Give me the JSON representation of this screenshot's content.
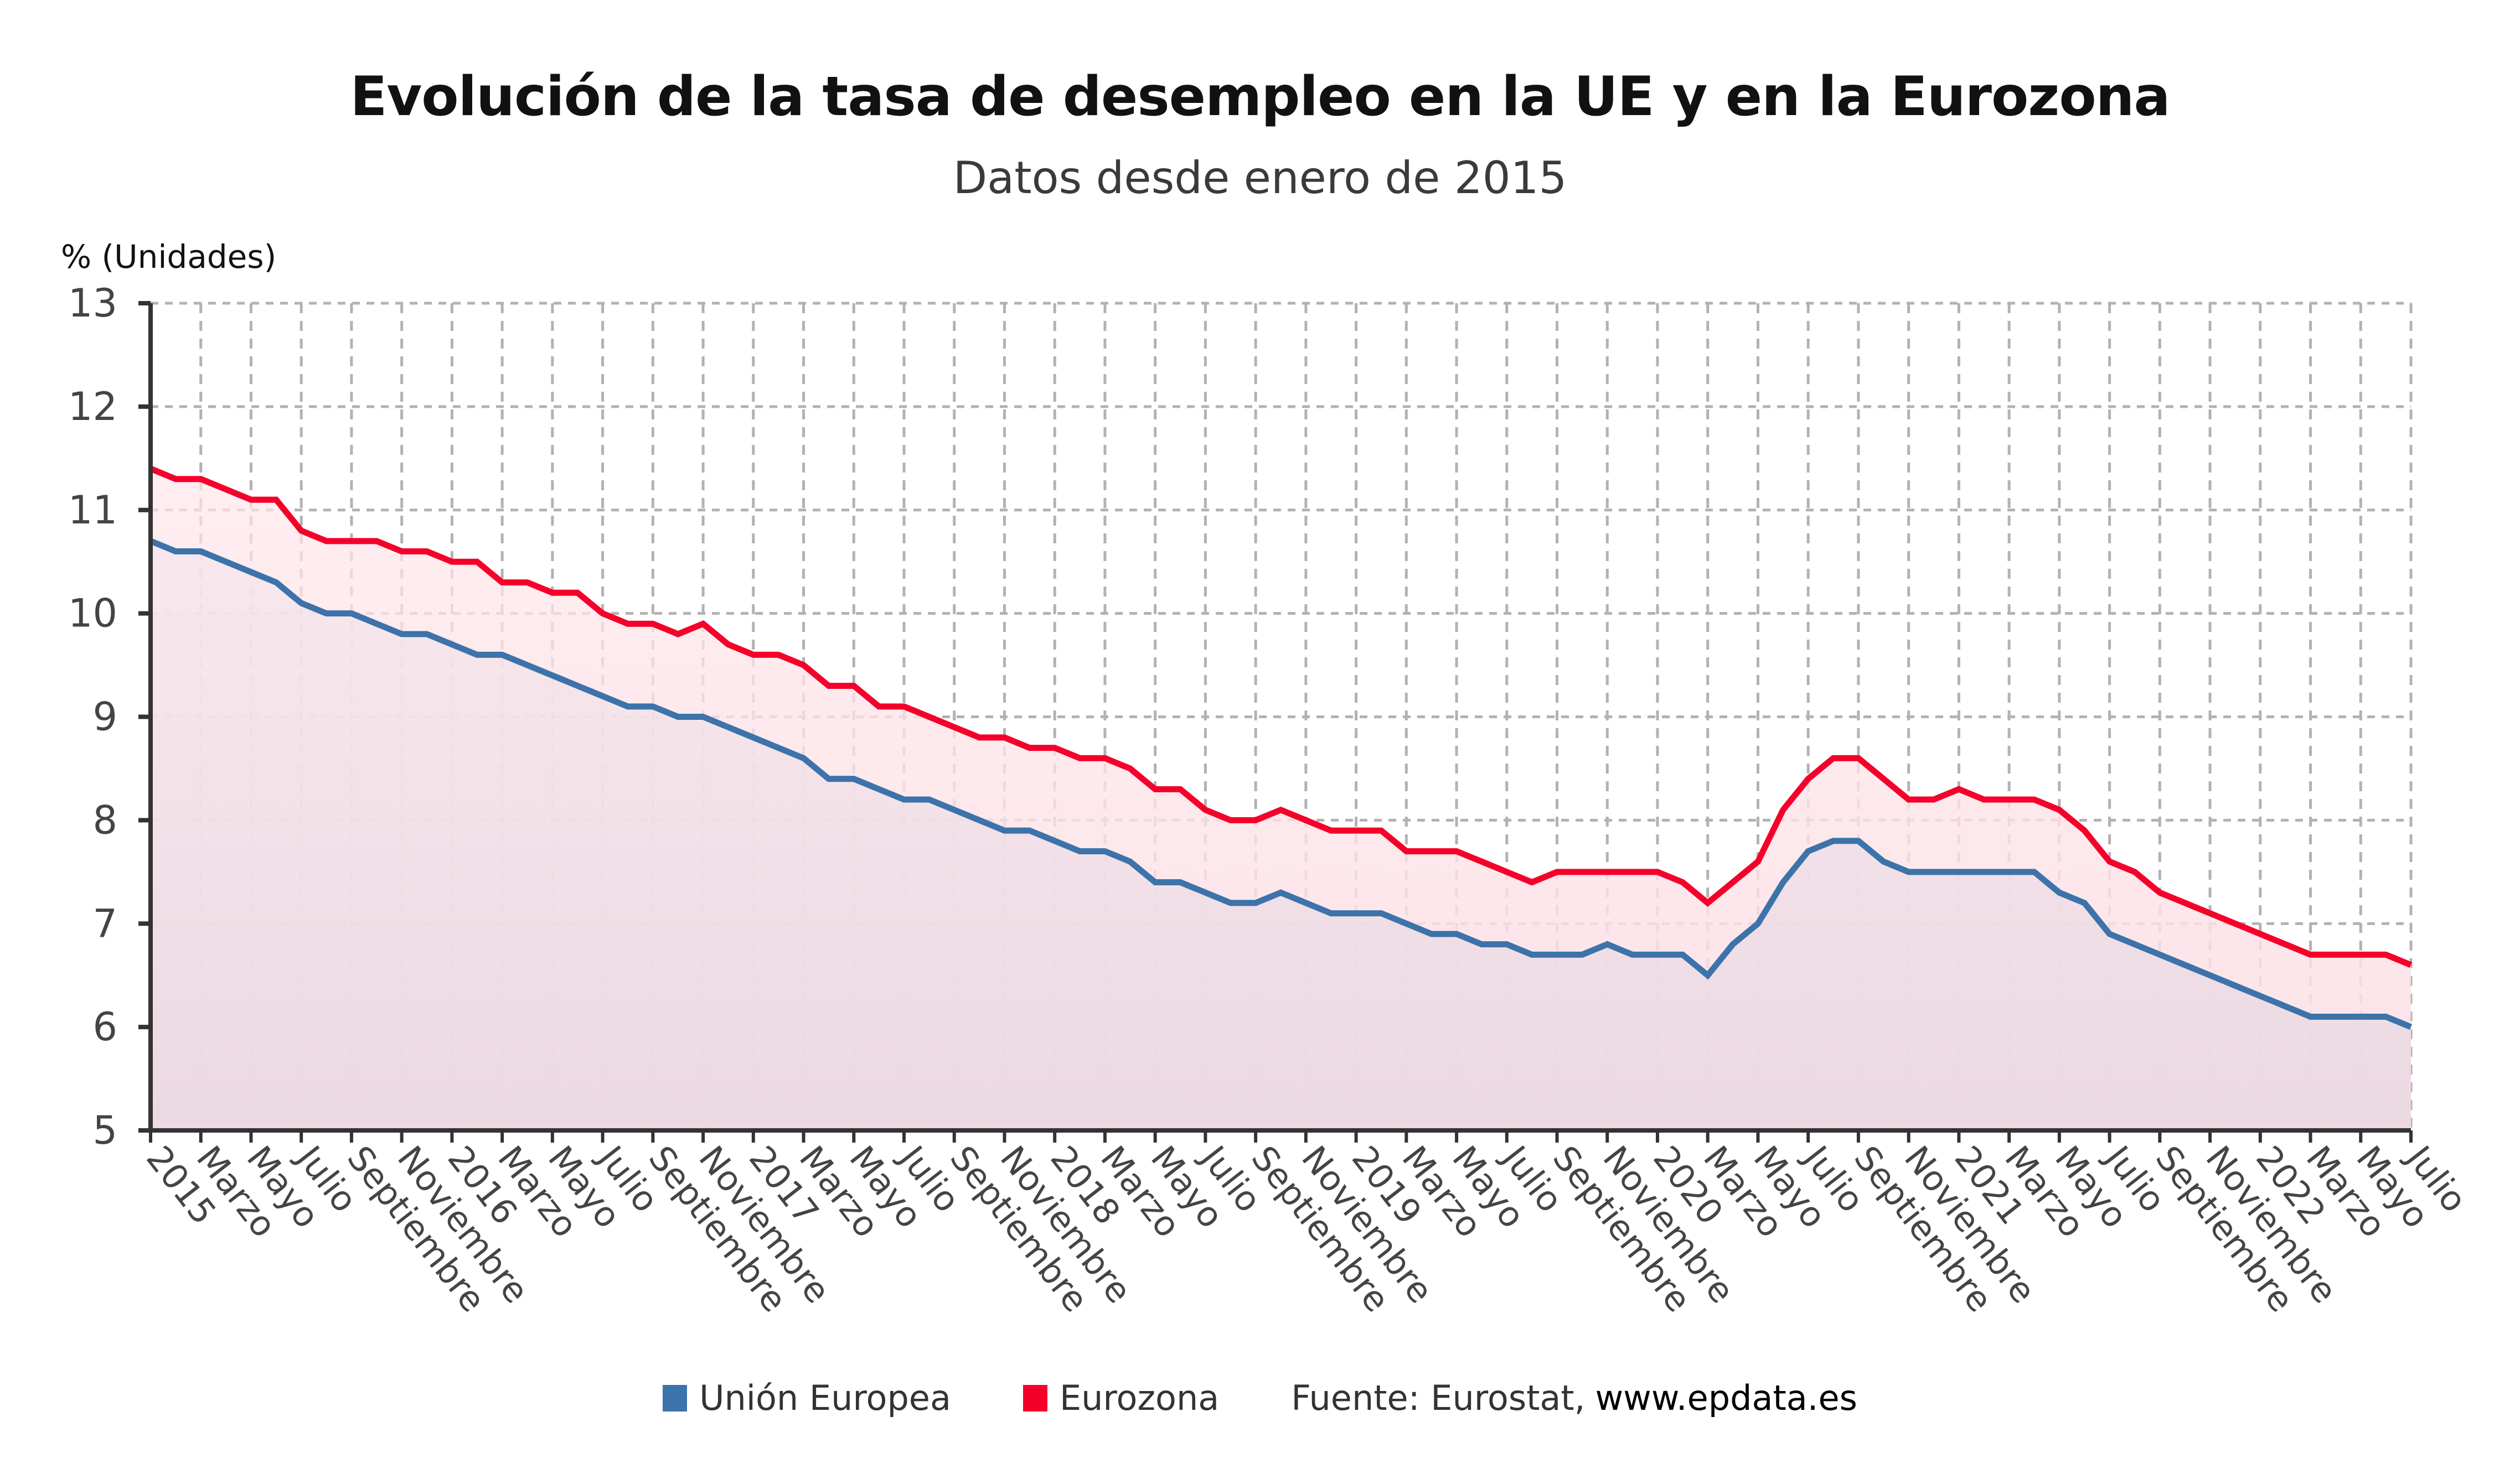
{
  "title": "Evolución de la tasa de desempleo en la UE y en la Eurozona",
  "subtitle": "Datos desde enero de 2015",
  "legend": [
    {
      "label": "Unión Europea",
      "color": "#3c73aa"
    },
    {
      "label": "Eurozona",
      "color": "#f5002a"
    }
  ],
  "source": {
    "label": "Fuente: Eurostat,",
    "site": "www.epdata.es"
  },
  "chart_data": {
    "type": "line",
    "title": "Evolución de la tasa de desempleo en la UE y en la Eurozona",
    "subtitle": "Datos desde enero de 2015",
    "xlabel": "",
    "ylabel": "% (Unidades)",
    "ylim": [
      5,
      13
    ],
    "yticks": [
      5,
      6,
      7,
      8,
      9,
      10,
      11,
      12,
      13
    ],
    "grid": true,
    "legend_position": "bottom",
    "x_start": "2015-01",
    "x_frequency": "monthly",
    "x_tick_labels": [
      "2015",
      "Marzo",
      "Mayo",
      "Julio",
      "Septiembre",
      "Noviembre",
      "2016",
      "Marzo",
      "Mayo",
      "Julio",
      "Septiembre",
      "Noviembre",
      "2017",
      "Marzo",
      "Mayo",
      "Julio",
      "Septiembre",
      "Noviembre",
      "2018",
      "Marzo",
      "Mayo",
      "Julio",
      "Septiembre",
      "Noviembre",
      "2019",
      "Marzo",
      "Mayo",
      "Julio",
      "Septiembre",
      "Noviembre",
      "2020",
      "Marzo",
      "Mayo",
      "Julio",
      "Septiembre",
      "Noviembre",
      "2021",
      "Marzo",
      "Mayo",
      "Julio",
      "Septiembre",
      "Noviembre",
      "2022",
      "Marzo",
      "Mayo",
      "Julio"
    ],
    "series": [
      {
        "name": "Unión Europea",
        "color": "#3c73aa",
        "values": [
          10.7,
          10.6,
          10.6,
          10.5,
          10.4,
          10.3,
          10.1,
          10.0,
          10.0,
          9.9,
          9.8,
          9.8,
          9.7,
          9.6,
          9.6,
          9.5,
          9.4,
          9.3,
          9.2,
          9.1,
          9.1,
          9.0,
          9.0,
          8.9,
          8.8,
          8.7,
          8.6,
          8.4,
          8.4,
          8.3,
          8.2,
          8.2,
          8.1,
          8.0,
          7.9,
          7.9,
          7.8,
          7.7,
          7.7,
          7.6,
          7.4,
          7.4,
          7.3,
          7.2,
          7.2,
          7.3,
          7.2,
          7.1,
          7.1,
          7.1,
          7.0,
          6.9,
          6.9,
          6.8,
          6.8,
          6.7,
          6.7,
          6.7,
          6.8,
          6.7,
          6.7,
          6.7,
          6.5,
          6.8,
          7.0,
          7.4,
          7.7,
          7.8,
          7.8,
          7.6,
          7.5,
          7.5,
          7.5,
          7.5,
          7.5,
          7.5,
          7.3,
          7.2,
          6.9,
          6.8,
          6.7,
          6.6,
          6.5,
          6.4,
          6.3,
          6.2,
          6.1,
          6.1,
          6.1,
          6.1,
          6.0
        ]
      },
      {
        "name": "Eurozona",
        "color": "#f5002a",
        "values": [
          11.4,
          11.3,
          11.3,
          11.2,
          11.1,
          11.1,
          10.8,
          10.7,
          10.7,
          10.7,
          10.6,
          10.6,
          10.5,
          10.5,
          10.3,
          10.3,
          10.2,
          10.2,
          10.0,
          9.9,
          9.9,
          9.8,
          9.9,
          9.7,
          9.6,
          9.6,
          9.5,
          9.3,
          9.3,
          9.1,
          9.1,
          9.0,
          8.9,
          8.8,
          8.8,
          8.7,
          8.7,
          8.6,
          8.6,
          8.5,
          8.3,
          8.3,
          8.1,
          8.0,
          8.0,
          8.1,
          8.0,
          7.9,
          7.9,
          7.9,
          7.7,
          7.7,
          7.7,
          7.6,
          7.5,
          7.4,
          7.5,
          7.5,
          7.5,
          7.5,
          7.5,
          7.4,
          7.2,
          7.4,
          7.6,
          8.1,
          8.4,
          8.6,
          8.6,
          8.4,
          8.2,
          8.2,
          8.3,
          8.2,
          8.2,
          8.2,
          8.1,
          7.9,
          7.6,
          7.5,
          7.3,
          7.2,
          7.1,
          7.0,
          6.9,
          6.8,
          6.7,
          6.7,
          6.7,
          6.7,
          6.6
        ]
      }
    ]
  }
}
